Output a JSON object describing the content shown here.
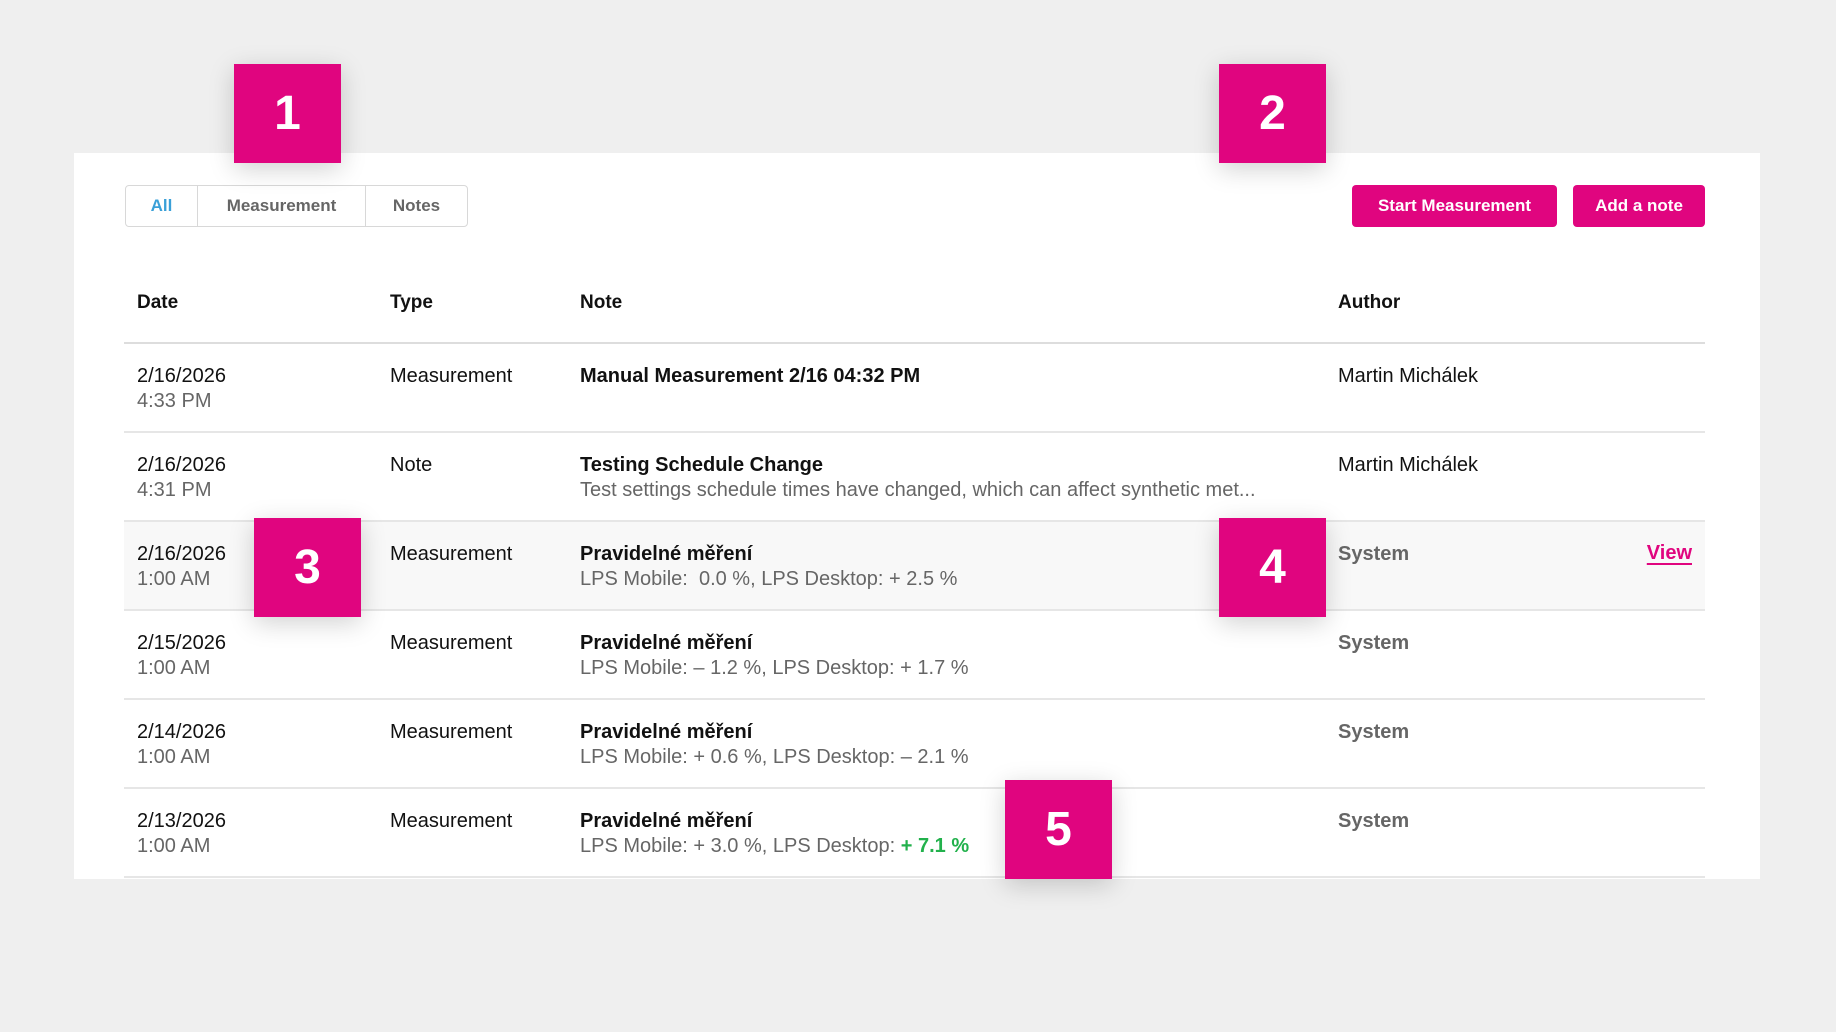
{
  "filters": {
    "items": [
      "All",
      "Measurement",
      "Notes"
    ],
    "active": "All"
  },
  "actions": {
    "start_measurement": "Start Measurement",
    "add_note": "Add a note"
  },
  "table": {
    "headers": {
      "date": "Date",
      "type": "Type",
      "note": "Note",
      "author": "Author"
    },
    "rows": [
      {
        "date": "2/16/2026",
        "time": "4:33 PM",
        "type": "Measurement",
        "title": "Manual Measurement 2/16 04:32 PM",
        "detail": "",
        "author": "Martin Michálek"
      },
      {
        "date": "2/16/2026",
        "time": "4:31 PM",
        "type": "Note",
        "title": "Testing Schedule Change",
        "detail": "Test settings schedule times have changed, which can affect synthetic met...",
        "author": "Martin Michálek"
      },
      {
        "date": "2/16/2026",
        "time": "1:00 AM",
        "type": "Measurement",
        "title": "Pravidelné měření",
        "detail": "LPS Mobile:  0.0 %, LPS Desktop: + 2.5 %",
        "author": "System",
        "action": "View"
      },
      {
        "date": "2/15/2026",
        "time": "1:00 AM",
        "type": "Measurement",
        "title": "Pravidelné měření",
        "detail": "LPS Mobile: – 1.2 %, LPS Desktop: + 1.7 %",
        "author": "System"
      },
      {
        "date": "2/14/2026",
        "time": "1:00 AM",
        "type": "Measurement",
        "title": "Pravidelné měření",
        "detail": "LPS Mobile: + 0.6 %, LPS Desktop: – 2.1 %",
        "author": "System"
      },
      {
        "date": "2/13/2026",
        "time": "1:00 AM",
        "type": "Measurement",
        "title": "Pravidelné měření",
        "detail": "LPS Mobile: + 3.0 %, LPS Desktop: ",
        "detail_highlight": "+ 7.1 %",
        "author": "System"
      }
    ]
  },
  "badges": [
    "1",
    "2",
    "3",
    "4",
    "5"
  ],
  "colors": {
    "accent": "#e0057f",
    "active_filter": "#3aa0d8",
    "positive": "#22b14c",
    "background": "#efefef"
  }
}
